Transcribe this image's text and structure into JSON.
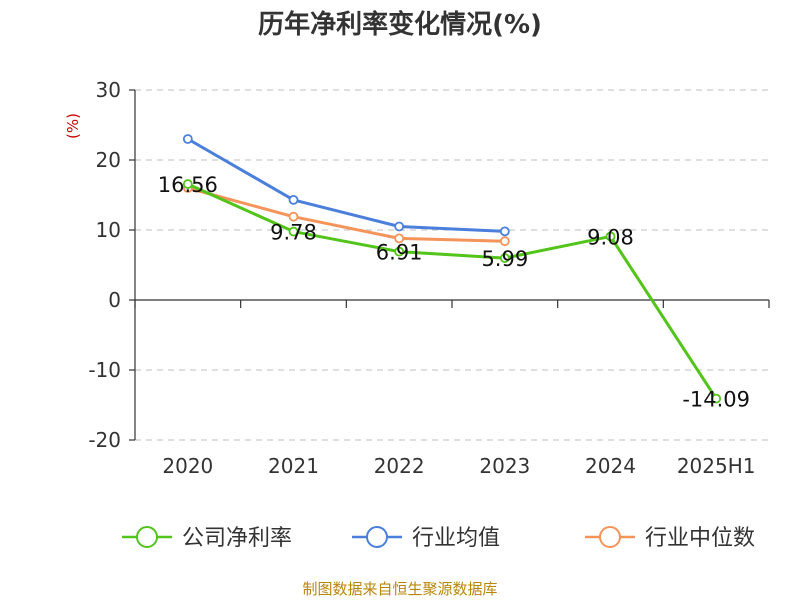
{
  "chart_data": {
    "type": "line",
    "title": "历年净利率变化情况(%)",
    "ylabel": "(%)",
    "xlabel": "",
    "categories": [
      "2020",
      "2021",
      "2022",
      "2023",
      "2024",
      "2025H1"
    ],
    "ylim": [
      -20,
      30
    ],
    "yticks": [
      30,
      20,
      10,
      0,
      -10,
      -20
    ],
    "grid": true,
    "legend_position": "bottom",
    "series": [
      {
        "name": "公司净利率",
        "color": "#52c41a",
        "values": [
          16.56,
          9.78,
          6.91,
          5.99,
          9.08,
          -14.09
        ],
        "labels": [
          "16.56",
          "9.78",
          "6.91",
          "5.99",
          "9.08",
          "-14.09"
        ]
      },
      {
        "name": "行业均值",
        "color": "#4a7fdc",
        "values": [
          23.0,
          14.3,
          10.5,
          9.8,
          null,
          null
        ]
      },
      {
        "name": "行业中位数",
        "color": "#f4935a",
        "values": [
          16.0,
          11.9,
          8.8,
          8.4,
          null,
          null
        ]
      }
    ],
    "source": "制图数据来自恒生聚源数据库"
  }
}
